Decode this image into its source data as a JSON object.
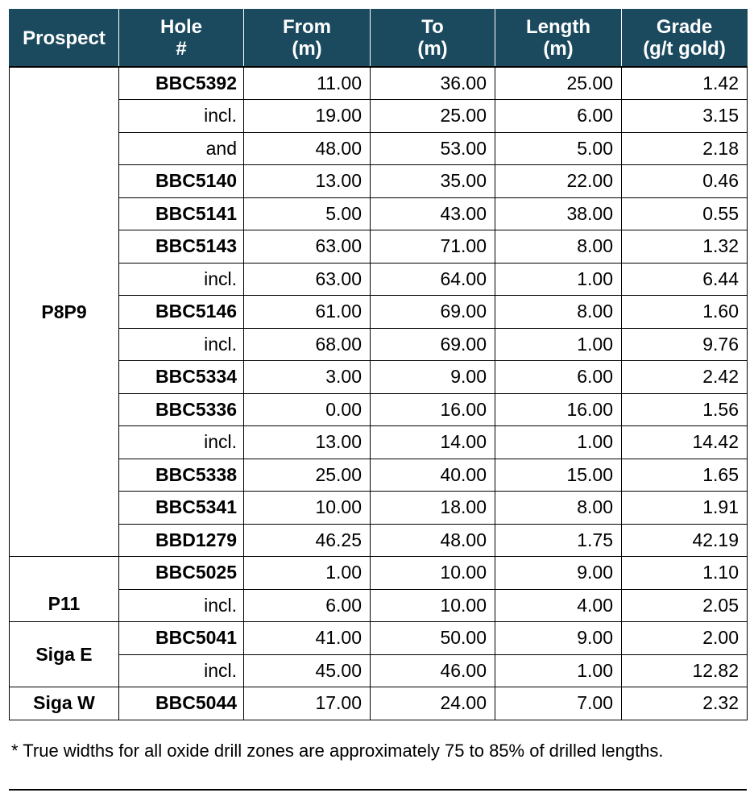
{
  "table": {
    "headers": {
      "prospect": "Prospect",
      "hole_line1": "Hole",
      "hole_line2": "#",
      "from_line1": "From",
      "from_line2": "(m)",
      "to_line1": "To",
      "to_line2": "(m)",
      "length_line1": "Length",
      "length_line2": "(m)",
      "grade_line1": "Grade",
      "grade_line2": "(g/t gold)"
    },
    "groups": [
      {
        "prospect": "P8P9",
        "rows": [
          {
            "hole": "BBC5392",
            "bold": true,
            "from": "11.00",
            "to": "36.00",
            "length": "25.00",
            "grade": "1.42"
          },
          {
            "hole": "incl.",
            "bold": false,
            "from": "19.00",
            "to": "25.00",
            "length": "6.00",
            "grade": "3.15"
          },
          {
            "hole": "and",
            "bold": false,
            "from": "48.00",
            "to": "53.00",
            "length": "5.00",
            "grade": "2.18"
          },
          {
            "hole": "BBC5140",
            "bold": true,
            "from": "13.00",
            "to": "35.00",
            "length": "22.00",
            "grade": "0.46"
          },
          {
            "hole": "BBC5141",
            "bold": true,
            "from": "5.00",
            "to": "43.00",
            "length": "38.00",
            "grade": "0.55"
          },
          {
            "hole": "BBC5143",
            "bold": true,
            "from": "63.00",
            "to": "71.00",
            "length": "8.00",
            "grade": "1.32"
          },
          {
            "hole": "incl.",
            "bold": false,
            "from": "63.00",
            "to": "64.00",
            "length": "1.00",
            "grade": "6.44"
          },
          {
            "hole": "BBC5146",
            "bold": true,
            "from": "61.00",
            "to": "69.00",
            "length": "8.00",
            "grade": "1.60"
          },
          {
            "hole": "incl.",
            "bold": false,
            "from": "68.00",
            "to": "69.00",
            "length": "1.00",
            "grade": "9.76"
          },
          {
            "hole": "BBC5334",
            "bold": true,
            "from": "3.00",
            "to": "9.00",
            "length": "6.00",
            "grade": "2.42"
          },
          {
            "hole": "BBC5336",
            "bold": true,
            "from": "0.00",
            "to": "16.00",
            "length": "16.00",
            "grade": "1.56"
          },
          {
            "hole": "incl.",
            "bold": false,
            "from": "13.00",
            "to": "14.00",
            "length": "1.00",
            "grade": "14.42"
          },
          {
            "hole": "BBC5338",
            "bold": true,
            "from": "25.00",
            "to": "40.00",
            "length": "15.00",
            "grade": "1.65"
          },
          {
            "hole": "BBC5341",
            "bold": true,
            "from": "10.00",
            "to": "18.00",
            "length": "8.00",
            "grade": "1.91"
          },
          {
            "hole": "BBD1279",
            "bold": true,
            "from": "46.25",
            "to": "48.00",
            "length": "1.75",
            "grade": "42.19"
          }
        ]
      },
      {
        "prospect": "P11",
        "rows": [
          {
            "hole": "BBC5025",
            "bold": true,
            "from": "1.00",
            "to": "10.00",
            "length": "9.00",
            "grade": "1.10"
          },
          {
            "hole": "incl.",
            "bold": false,
            "from": "6.00",
            "to": "10.00",
            "length": "4.00",
            "grade": "2.05"
          }
        ]
      },
      {
        "prospect": "Siga E",
        "rows": [
          {
            "hole": "BBC5041",
            "bold": true,
            "from": "41.00",
            "to": "50.00",
            "length": "9.00",
            "grade": "2.00"
          },
          {
            "hole": "incl.",
            "bold": false,
            "from": "45.00",
            "to": "46.00",
            "length": "1.00",
            "grade": "12.82"
          }
        ]
      },
      {
        "prospect": "Siga W",
        "rows": [
          {
            "hole": "BBC5044",
            "bold": true,
            "from": "17.00",
            "to": "24.00",
            "length": "7.00",
            "grade": "2.32"
          }
        ]
      }
    ]
  },
  "footnote": "* True widths for all oxide drill zones are approximately 75 to 85% of drilled lengths."
}
